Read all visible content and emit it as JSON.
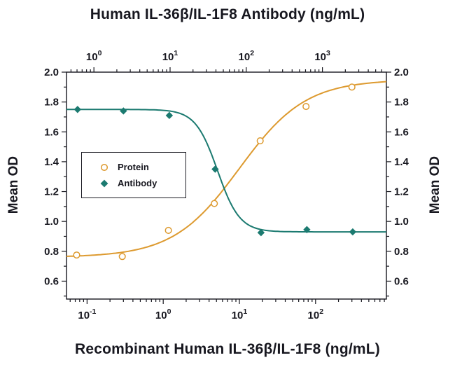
{
  "colors": {
    "background": "#ffffff",
    "ink": "#17171f",
    "protein": "#DD9A2F",
    "antibody": "#1B7A70"
  },
  "chart_data": {
    "type": "line",
    "top_axis_label": "Human IL-36β/IL-1F8 Antibody (ng/mL)",
    "xlabel_bottom": "Recombinant Human IL-36β/IL-1F8 (ng/mL)",
    "ylabel_left": "Mean OD",
    "ylabel_right": "Mean OD",
    "y_axis": {
      "range": [
        0.48,
        2.0
      ],
      "ticks": [
        0.6,
        0.8,
        1.0,
        1.2,
        1.4,
        1.6,
        1.8,
        2.0
      ],
      "tick_labels": [
        "0.6",
        "0.8",
        "1.0",
        "1.2",
        "1.4",
        "1.6",
        "1.8",
        "2.0"
      ]
    },
    "x_axis_bottom": {
      "scale": "log",
      "range_log10": [
        -1.27,
        2.93
      ],
      "major_ticks": [
        0.1,
        1,
        10,
        100
      ],
      "tick_labels": [
        "10⁻¹",
        "10⁰",
        "10¹",
        "10²"
      ]
    },
    "x_axis_top": {
      "scale": "log",
      "range_log10": [
        -0.36,
        3.84
      ],
      "major_ticks": [
        1,
        10,
        100,
        1000
      ],
      "tick_labels": [
        "10⁰",
        "10¹",
        "10²",
        "10³"
      ]
    },
    "series": [
      {
        "name": "Protein",
        "axis": "bottom",
        "color": "#DD9A2F",
        "marker": "open-circle",
        "x": [
          0.073,
          0.29,
          1.17,
          4.69,
          18.75,
          75,
          300
        ],
        "y": [
          0.775,
          0.765,
          0.94,
          1.12,
          1.54,
          1.77,
          1.9
        ],
        "fit_4pl": {
          "a": 0.76,
          "b": 1.0,
          "c": 10,
          "d": 1.95
        }
      },
      {
        "name": "Antibody",
        "axis": "top",
        "color": "#1B7A70",
        "marker": "filled-diamond",
        "x": [
          0.61,
          2.44,
          9.77,
          39.06,
          156.25,
          625,
          2500
        ],
        "y": [
          1.75,
          1.74,
          1.71,
          1.35,
          0.925,
          0.945,
          0.93
        ],
        "fit_4pl": {
          "a": 1.75,
          "b": 3.0,
          "c": 42,
          "d": 0.93
        }
      }
    ],
    "legend": {
      "position": "middle-left",
      "entries": [
        {
          "label": "Protein",
          "marker": "open-circle"
        },
        {
          "label": "Antibody",
          "marker": "filled-diamond"
        }
      ]
    }
  }
}
